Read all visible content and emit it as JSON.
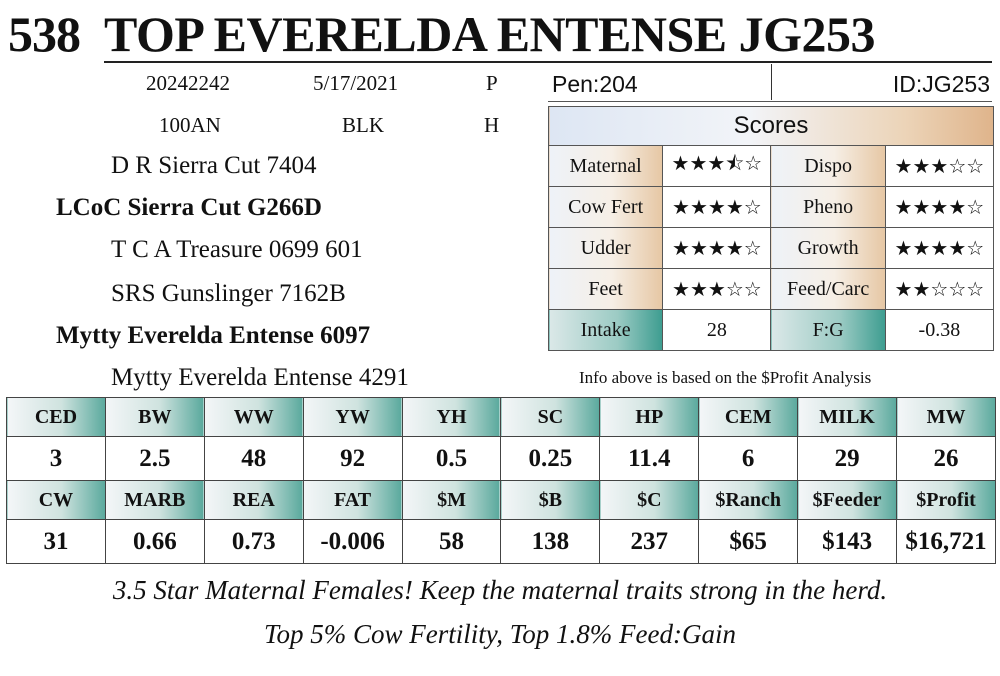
{
  "header": {
    "lot": "538",
    "name": "TOP EVERELDA ENTENSE JG253"
  },
  "info": {
    "reg": "20242242",
    "dob": "5/17/2021",
    "code1": "P",
    "breed": "100AN",
    "color": "BLK",
    "code2": "H"
  },
  "pedigree": {
    "sire_sire": "D R Sierra Cut 7404",
    "sire": "LCoC Sierra Cut G266D",
    "sire_dam": "T C A Treasure 0699 601",
    "dam_sire": "SRS Gunslinger 7162B",
    "dam": "Mytty Everelda Entense 6097",
    "dam_dam": "Mytty Everelda Entense 4291"
  },
  "pen": "Pen:204",
  "id": "ID:JG253",
  "scores": {
    "title": "Scores",
    "rows": [
      {
        "l1": "Maternal",
        "v1": "★★★⯪☆",
        "r1": 3.5,
        "l2": "Dispo",
        "v2": "★★★☆☆",
        "r2": 3
      },
      {
        "l1": "Cow Fert",
        "v1": "★★★★☆",
        "r1": 4,
        "l2": "Pheno",
        "v2": "★★★★☆",
        "r2": 4
      },
      {
        "l1": "Udder",
        "v1": "★★★★☆",
        "r1": 4,
        "l2": "Growth",
        "v2": "★★★★☆",
        "r2": 4
      },
      {
        "l1": "Feet",
        "v1": "★★★☆☆",
        "r1": 3,
        "l2": "Feed/Carc",
        "v2": "★★☆☆☆",
        "r2": 2
      }
    ],
    "intake_label": "Intake",
    "intake_value": "28",
    "fg_label": "F:G",
    "fg_value": "-0.38"
  },
  "note": "Info above is based on the $Profit Analysis",
  "epds": {
    "row1_headers": [
      "CED",
      "BW",
      "WW",
      "YW",
      "YH",
      "SC",
      "HP",
      "CEM",
      "MILK",
      "MW"
    ],
    "row1_values": [
      "3",
      "2.5",
      "48",
      "92",
      "0.5",
      "0.25",
      "11.4",
      "6",
      "29",
      "26"
    ],
    "row2_headers": [
      "CW",
      "MARB",
      "REA",
      "FAT",
      "$M",
      "$B",
      "$C",
      "$Ranch",
      "$Feeder",
      "$Profit"
    ],
    "row2_values": [
      "31",
      "0.66",
      "0.73",
      "-0.006",
      "58",
      "138",
      "237",
      "$65",
      "$143",
      "$16,721"
    ]
  },
  "footer": {
    "line1": "3.5 Star Maternal Females! Keep the maternal traits strong in the herd.",
    "line2": "Top 5% Cow Fertility, Top 1.8% Feed:Gain"
  }
}
